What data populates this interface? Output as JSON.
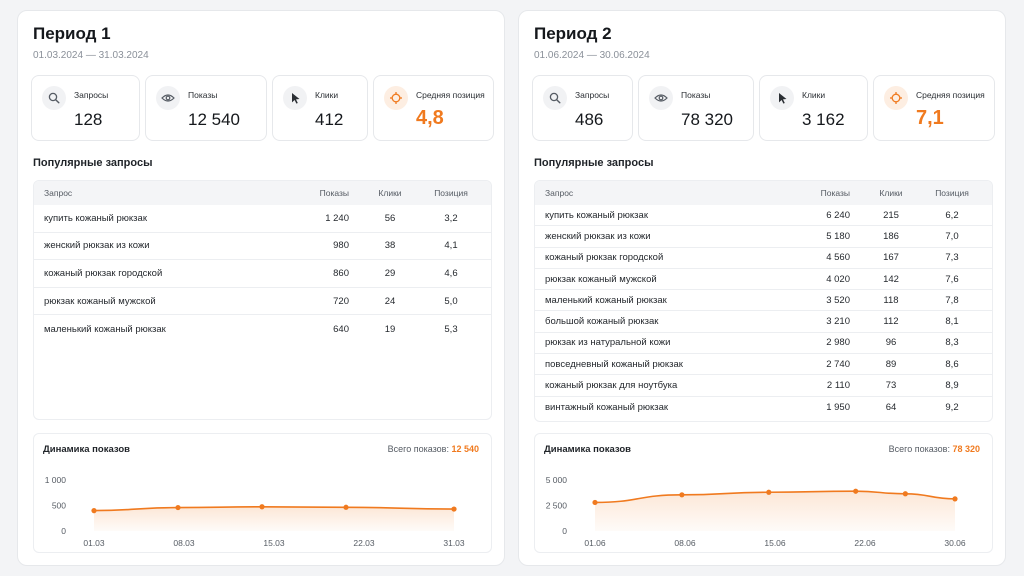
{
  "colors": {
    "accent": "#f07a1f",
    "text": "#1f2328",
    "muted": "#8a9099"
  },
  "periods": [
    {
      "title": "Период 1",
      "dates": "01.03.2024 — 31.03.2024",
      "kpis": [
        {
          "icon": "search-icon",
          "label": "Запросы",
          "value": "128"
        },
        {
          "icon": "eye-icon",
          "label": "Показы",
          "value": "12 540"
        },
        {
          "icon": "cursor-icon",
          "label": "Клики",
          "value": "412"
        },
        {
          "icon": "target-icon",
          "label": "Средняя позиция",
          "value": "4,8"
        }
      ],
      "popular_title": "Популярные запросы",
      "table": {
        "headers": [
          "Запрос",
          "Показы",
          "Клики",
          "Позиция"
        ],
        "rows": [
          [
            "купить кожаный рюкзак",
            "1 240",
            "56",
            "3,2"
          ],
          [
            "женский рюкзак из кожи",
            "980",
            "38",
            "4,1"
          ],
          [
            "кожаный рюкзак городской",
            "860",
            "29",
            "4,6"
          ],
          [
            "рюкзак кожаный мужской",
            "720",
            "24",
            "5,0"
          ],
          [
            "маленький кожаный рюкзак",
            "640",
            "19",
            "5,3"
          ]
        ]
      },
      "chart": {
        "title": "Динамика показов",
        "total_label": "Всего показов:",
        "total_value": "12 540"
      }
    },
    {
      "title": "Период 2",
      "dates": "01.06.2024 — 30.06.2024",
      "kpis": [
        {
          "icon": "search-icon",
          "label": "Запросы",
          "value": "486"
        },
        {
          "icon": "eye-icon",
          "label": "Показы",
          "value": "78 320"
        },
        {
          "icon": "cursor-icon",
          "label": "Клики",
          "value": "3 162"
        },
        {
          "icon": "target-icon",
          "label": "Средняя позиция",
          "value": "7,1"
        }
      ],
      "popular_title": "Популярные запросы",
      "table": {
        "headers": [
          "Запрос",
          "Показы",
          "Клики",
          "Позиция"
        ],
        "rows": [
          [
            "купить кожаный рюкзак",
            "6 240",
            "215",
            "6,2"
          ],
          [
            "женский рюкзак из кожи",
            "5 180",
            "186",
            "7,0"
          ],
          [
            "кожаный рюкзак городской",
            "4 560",
            "167",
            "7,3"
          ],
          [
            "рюкзак кожаный мужской",
            "4 020",
            "142",
            "7,6"
          ],
          [
            "маленький кожаный рюкзак",
            "3 520",
            "118",
            "7,8"
          ],
          [
            "большой кожаный рюкзак",
            "3 210",
            "112",
            "8,1"
          ],
          [
            "рюкзак из натуральной кожи",
            "2 980",
            "96",
            "8,3"
          ],
          [
            "повседневный кожаный рюкзак",
            "2 740",
            "89",
            "8,6"
          ],
          [
            "кожаный рюкзак для ноутбука",
            "2 110",
            "73",
            "8,9"
          ],
          [
            "винтажный кожаный рюкзак",
            "1 950",
            "64",
            "9,2"
          ]
        ]
      },
      "chart": {
        "title": "Динамика показов",
        "total_label": "Всего показов:",
        "total_value": "78 320"
      }
    }
  ],
  "chart_data": [
    {
      "type": "area",
      "title": "Динамика показов",
      "x_ticks": [
        "01.03",
        "08.03",
        "15.03",
        "22.03",
        "31.03"
      ],
      "y_ticks": [
        "1 000",
        "500",
        "0"
      ],
      "ylim": [
        0,
        1000
      ],
      "x": [
        1,
        8,
        15,
        22,
        31
      ],
      "values": [
        400,
        460,
        475,
        465,
        430
      ],
      "grid": false,
      "legend": "none"
    },
    {
      "type": "area",
      "title": "Динамика показов",
      "x_ticks": [
        "01.06",
        "08.06",
        "15.06",
        "22.06",
        "30.06"
      ],
      "y_ticks": [
        "5 000",
        "2 500",
        "0"
      ],
      "ylim": [
        0,
        5000
      ],
      "x": [
        1,
        8,
        15,
        22,
        26,
        30
      ],
      "values": [
        2800,
        3550,
        3800,
        3900,
        3650,
        3150
      ],
      "grid": false,
      "legend": "none"
    }
  ]
}
